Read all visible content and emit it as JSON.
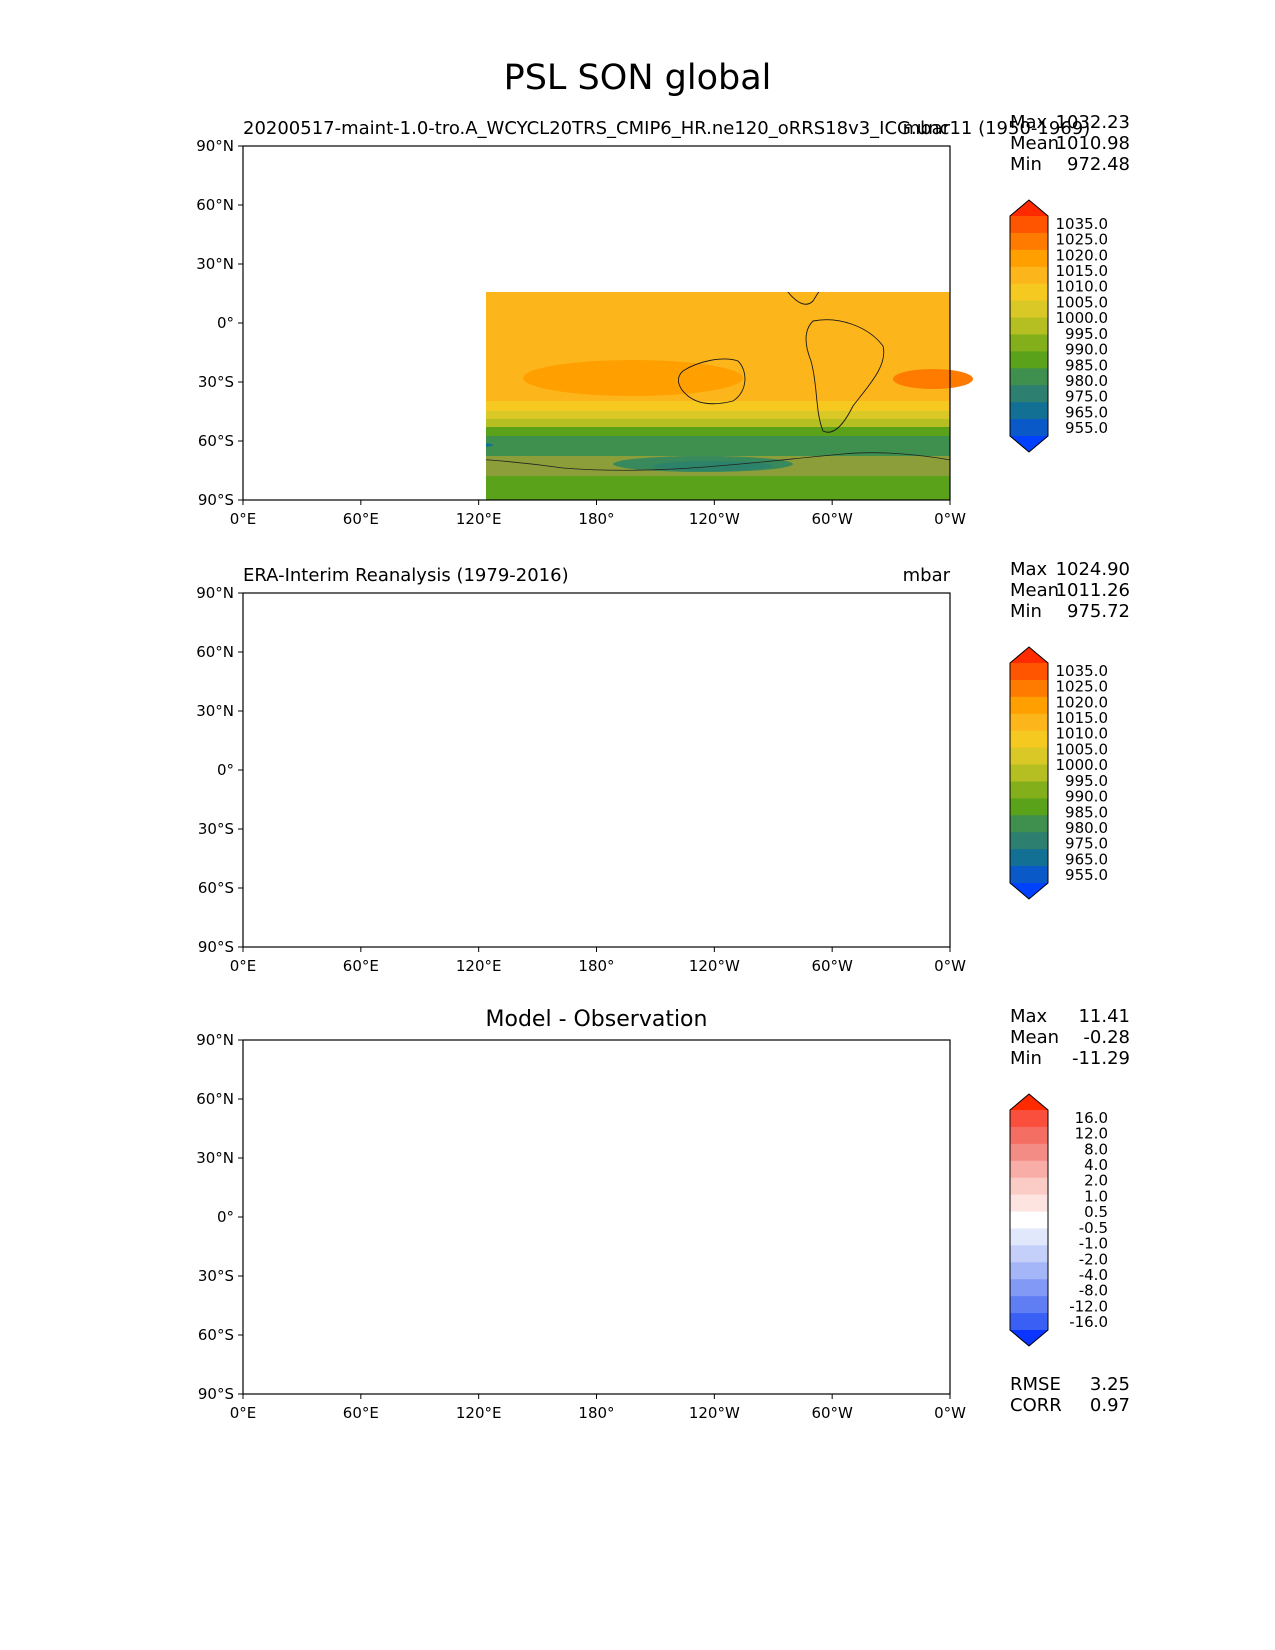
{
  "title": "PSL SON global",
  "axes": {
    "lat_labels": [
      "90°N",
      "60°N",
      "30°N",
      "0°",
      "30°S",
      "60°S",
      "90°S"
    ],
    "lon_labels": [
      "0°E",
      "60°E",
      "120°E",
      "180°",
      "120°W",
      "60°W",
      "0°W"
    ]
  },
  "panels": [
    {
      "title_left": "20200517-maint-1.0-tro.A_WCYCL20TRS_CMIP6_HR.ne120_oRRS18v3_ICG.unc11 (1950-1969)",
      "title_right": "mbar",
      "title_center": "",
      "stats": [
        {
          "label": "Max",
          "value": "1032.23"
        },
        {
          "label": "Mean",
          "value": "1010.98"
        },
        {
          "label": "Min",
          "value": "972.48"
        }
      ],
      "colorbar": [
        "1035.0",
        "1025.0",
        "1020.0",
        "1015.0",
        "1010.0",
        "1005.0",
        "1000.0",
        "995.0",
        "990.0",
        "985.0",
        "980.0",
        "975.0",
        "965.0",
        "955.0"
      ],
      "extra": []
    },
    {
      "title_left": "ERA-Interim Reanalysis (1979-2016)",
      "title_right": "mbar",
      "title_center": "",
      "stats": [
        {
          "label": "Max",
          "value": "1024.90"
        },
        {
          "label": "Mean",
          "value": "1011.26"
        },
        {
          "label": "Min",
          "value": "975.72"
        }
      ],
      "colorbar": [
        "1035.0",
        "1025.0",
        "1020.0",
        "1015.0",
        "1010.0",
        "1005.0",
        "1000.0",
        "995.0",
        "990.0",
        "985.0",
        "980.0",
        "975.0",
        "965.0",
        "955.0"
      ],
      "extra": []
    },
    {
      "title_left": "",
      "title_right": "",
      "title_center": "Model - Observation",
      "stats": [
        {
          "label": "Max",
          "value": "11.41"
        },
        {
          "label": "Mean",
          "value": "-0.28"
        },
        {
          "label": "Min",
          "value": "-11.29"
        }
      ],
      "colorbar": [
        "16.0",
        "12.0",
        "8.0",
        "4.0",
        "2.0",
        "1.0",
        "0.5",
        "-0.5",
        "-1.0",
        "-2.0",
        "-4.0",
        "-8.0",
        "-12.0",
        "-16.0"
      ],
      "extra": [
        {
          "label": "RMSE",
          "value": "3.25"
        },
        {
          "label": "CORR",
          "value": "0.97"
        }
      ]
    }
  ],
  "colors": {
    "abs_bands": [
      "#ff2a00",
      "#ff5400",
      "#ff7b00",
      "#ffa000",
      "#fdb51c",
      "#f5c91f",
      "#d9c825",
      "#b6bf21",
      "#83b01a",
      "#5aa21a",
      "#3f8f4e",
      "#2d7f70",
      "#127094",
      "#0a59c9",
      "#0040ff"
    ],
    "diff_bands": [
      "#ff2a00",
      "#fb4f3e",
      "#f56e63",
      "#f28c84",
      "#f8aea6",
      "#fbcbc6",
      "#fde4e1",
      "#ffffff",
      "#e2e8fc",
      "#c4d0fa",
      "#a4b5f8",
      "#8399f6",
      "#5f7ef4",
      "#3a5ff5",
      "#0a35ff"
    ]
  }
}
